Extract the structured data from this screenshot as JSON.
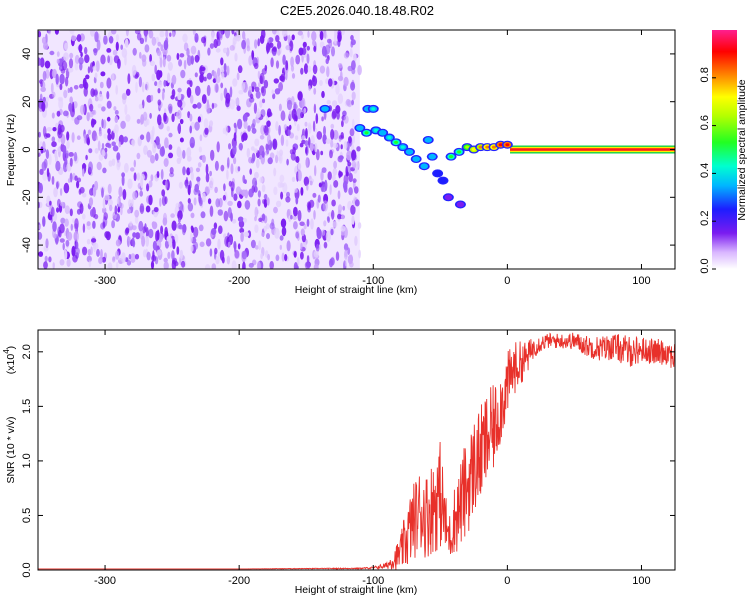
{
  "title": "C2E5.2026.040.18.48.R02",
  "chart_data": [
    {
      "type": "heatmap",
      "xlabel": "Height of straight line (km)",
      "ylabel": "Frequency (Hz)",
      "xlim": [
        -350,
        125
      ],
      "ylim": [
        -50,
        50
      ],
      "x_ticks": [
        -300,
        -200,
        -100,
        0,
        100
      ],
      "y_ticks": [
        -40,
        -20,
        0,
        20,
        40
      ],
      "noise_region_x": [
        -350,
        -110
      ],
      "carrier_frequency": 0,
      "carrier_start_x": 2,
      "signal_blobs": [
        {
          "x": -136,
          "y": 17,
          "amp": 0.3
        },
        {
          "x": -104,
          "y": 17,
          "amp": 0.35
        },
        {
          "x": -100,
          "y": 17,
          "amp": 0.4
        },
        {
          "x": -110,
          "y": 9,
          "amp": 0.3
        },
        {
          "x": -105,
          "y": 7,
          "amp": 0.45
        },
        {
          "x": -98,
          "y": 8,
          "amp": 0.4
        },
        {
          "x": -93,
          "y": 7,
          "amp": 0.35
        },
        {
          "x": -88,
          "y": 5,
          "amp": 0.4
        },
        {
          "x": -83,
          "y": 3,
          "amp": 0.45
        },
        {
          "x": -78,
          "y": 1,
          "amp": 0.4
        },
        {
          "x": -73,
          "y": -1,
          "amp": 0.35
        },
        {
          "x": -68,
          "y": -4,
          "amp": 0.3
        },
        {
          "x": -62,
          "y": -7,
          "amp": 0.3
        },
        {
          "x": -59,
          "y": 4,
          "amp": 0.3
        },
        {
          "x": -56,
          "y": -3,
          "amp": 0.3
        },
        {
          "x": -52,
          "y": -10,
          "amp": 0.25
        },
        {
          "x": -48,
          "y": -13,
          "amp": 0.2
        },
        {
          "x": -44,
          "y": -20,
          "amp": 0.15
        },
        {
          "x": -35,
          "y": -23,
          "amp": 0.15
        },
        {
          "x": -42,
          "y": -3,
          "amp": 0.45
        },
        {
          "x": -36,
          "y": -1,
          "amp": 0.5
        },
        {
          "x": -30,
          "y": 1,
          "amp": 0.55
        },
        {
          "x": -25,
          "y": 0,
          "amp": 0.7
        },
        {
          "x": -20,
          "y": 1,
          "amp": 0.75
        },
        {
          "x": -15,
          "y": 1,
          "amp": 0.8
        },
        {
          "x": -10,
          "y": 1,
          "amp": 0.82
        },
        {
          "x": -5,
          "y": 2,
          "amp": 0.85
        },
        {
          "x": 0,
          "y": 2,
          "amp": 0.88
        }
      ],
      "colorbar": {
        "label": "Normalized spectral amplitude",
        "ticks": [
          "0.0",
          "0.2",
          "0.4",
          "0.6",
          "0.8"
        ],
        "range": [
          0,
          1
        ]
      }
    },
    {
      "type": "line",
      "xlabel": "Height of straight line (km)",
      "ylabel": "SNR (10 * v/v)",
      "y_multiplier": "(x10",
      "y_multiplier_exp": "4",
      "y_multiplier_close": ")",
      "xlim": [
        -350,
        125
      ],
      "ylim": [
        0,
        2.2
      ],
      "x_ticks": [
        -300,
        -200,
        -100,
        0,
        100
      ],
      "y_ticks": [
        "0.0",
        "0.5",
        "1.0",
        "1.5",
        "2.0"
      ],
      "color": "#e8302a",
      "series": [
        {
          "x": [
            -350,
            -200,
            -110,
            -100,
            -90,
            -80,
            -75,
            -70,
            -65,
            -60,
            -55,
            -50,
            -45,
            -42,
            -40,
            -38,
            -35,
            -32,
            -30,
            -25,
            -20,
            -15,
            -10,
            -5,
            0,
            5,
            10,
            15,
            20,
            25,
            30,
            35,
            40,
            50,
            60,
            70,
            80,
            90,
            100,
            110,
            120,
            125
          ],
          "y": [
            0.01,
            0.01,
            0.015,
            0.02,
            0.04,
            0.15,
            0.3,
            0.45,
            0.55,
            0.5,
            0.6,
            0.7,
            0.35,
            0.3,
            0.45,
            0.5,
            0.6,
            0.7,
            0.75,
            0.95,
            1.05,
            1.2,
            1.3,
            1.5,
            1.7,
            1.85,
            1.9,
            1.95,
            2.05,
            2.08,
            2.1,
            2.1,
            2.1,
            2.1,
            2.05,
            2.03,
            2.05,
            2.0,
            2.02,
            2.0,
            2.0,
            1.95
          ],
          "spread": [
            0,
            0,
            0.005,
            0.01,
            0.03,
            0.15,
            0.3,
            0.35,
            0.4,
            0.4,
            0.45,
            0.5,
            0.25,
            0.2,
            0.3,
            0.35,
            0.4,
            0.45,
            0.45,
            0.45,
            0.45,
            0.45,
            0.4,
            0.35,
            0.3,
            0.25,
            0.2,
            0.15,
            0.1,
            0.08,
            0.07,
            0.07,
            0.07,
            0.08,
            0.1,
            0.12,
            0.12,
            0.15,
            0.12,
            0.12,
            0.12,
            0.15
          ]
        }
      ]
    }
  ]
}
